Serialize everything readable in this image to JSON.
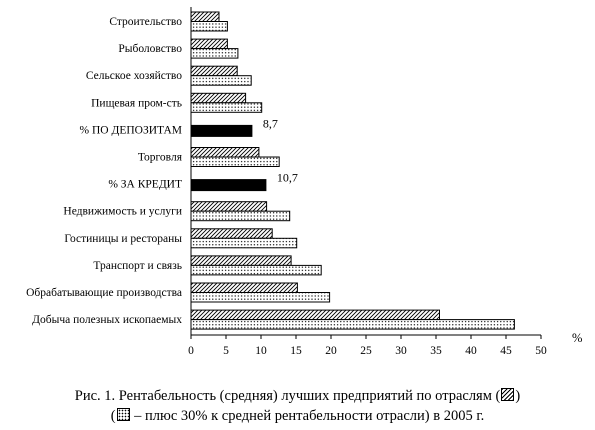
{
  "chart_data": {
    "type": "bar",
    "orientation": "horizontal",
    "categories": [
      "Строительство",
      "Рыболовство",
      "Сельское хозяйство",
      "Пищевая пром-сть",
      "% ПО ДЕПОЗИТАМ",
      "Торговля",
      "% ЗА КРЕДИТ",
      "Недвижимость и услуги",
      "Гостиницы и рестораны",
      "Транспорт и связь",
      "Обрабатывающие производства",
      "Добыча полезных ископаемых"
    ],
    "series": [
      {
        "pattern": "hatch",
        "values": [
          4.0,
          5.2,
          6.6,
          7.8,
          null,
          9.7,
          null,
          10.8,
          11.6,
          14.3,
          15.2,
          35.5
        ]
      },
      {
        "pattern": "dots",
        "values": [
          5.2,
          6.7,
          8.6,
          10.1,
          null,
          12.6,
          null,
          14.1,
          15.1,
          18.6,
          19.8,
          46.2
        ]
      },
      {
        "pattern": "solid",
        "values": [
          null,
          null,
          null,
          null,
          8.7,
          null,
          10.7,
          null,
          null,
          null,
          null,
          null
        ]
      }
    ],
    "data_labels": {
      "% ПО ДЕПОЗИТАМ": "8,7",
      "% ЗА КРЕДИТ": "10,7"
    },
    "x_ticks": [
      "0",
      "5",
      "10",
      "15",
      "20",
      "25",
      "30",
      "35",
      "40",
      "45",
      "50"
    ],
    "xlim": [
      0,
      50
    ],
    "xlabel": "%",
    "grid": false
  },
  "caption": {
    "line1_a": "Рис. 1. Рентабельность (средняя) лучших предприятий по отраслям (",
    "line1_b": ")",
    "line2_a": "(",
    "line2_b": " – плюс 30% к средней рентабельности отрасли) в 2005 г."
  },
  "legend_icons": [
    "hatched-square-icon",
    "dotted-square-icon"
  ],
  "colors": {
    "bar_stroke": "#000000",
    "solid_bar": "#000000",
    "background": "#ffffff"
  }
}
